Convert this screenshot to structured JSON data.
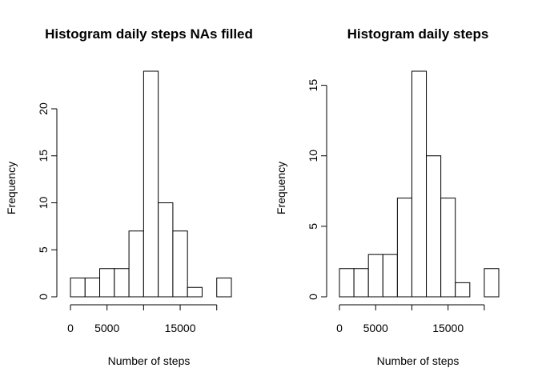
{
  "chart_data": [
    {
      "type": "histogram",
      "title": "Histogram daily steps NAs filled",
      "x_label": "Number of steps",
      "y_label": "Frequency",
      "bins": [
        0,
        2000,
        4000,
        6000,
        8000,
        10000,
        12000,
        14000,
        16000,
        18000,
        20000,
        22000
      ],
      "values": [
        2,
        2,
        3,
        3,
        7,
        24,
        10,
        7,
        1,
        0,
        2
      ],
      "color": "#ffffff",
      "xlim": [
        0,
        22000
      ],
      "ylim": [
        0,
        24
      ],
      "xticks": [
        0,
        5000,
        {
          "value": 10000,
          "label": null
        },
        15000,
        {
          "value": 20000,
          "label": null
        }
      ],
      "yticks": [
        0,
        5,
        10,
        15,
        20
      ]
    },
    {
      "type": "histogram",
      "title": "Histogram daily steps",
      "x_label": "Number of steps",
      "y_label": "Frequency",
      "bins": [
        0,
        2000,
        4000,
        6000,
        8000,
        10000,
        12000,
        14000,
        16000,
        18000,
        20000,
        22000
      ],
      "values": [
        2,
        2,
        3,
        3,
        7,
        16,
        10,
        7,
        1,
        0,
        2
      ],
      "color": "#ffffff",
      "xlim": [
        0,
        22000
      ],
      "ylim": [
        0,
        16
      ],
      "xticks": [
        0,
        5000,
        {
          "value": 10000,
          "label": null
        },
        15000,
        {
          "value": 20000,
          "label": null
        }
      ],
      "yticks": [
        0,
        5,
        10,
        15
      ]
    }
  ]
}
